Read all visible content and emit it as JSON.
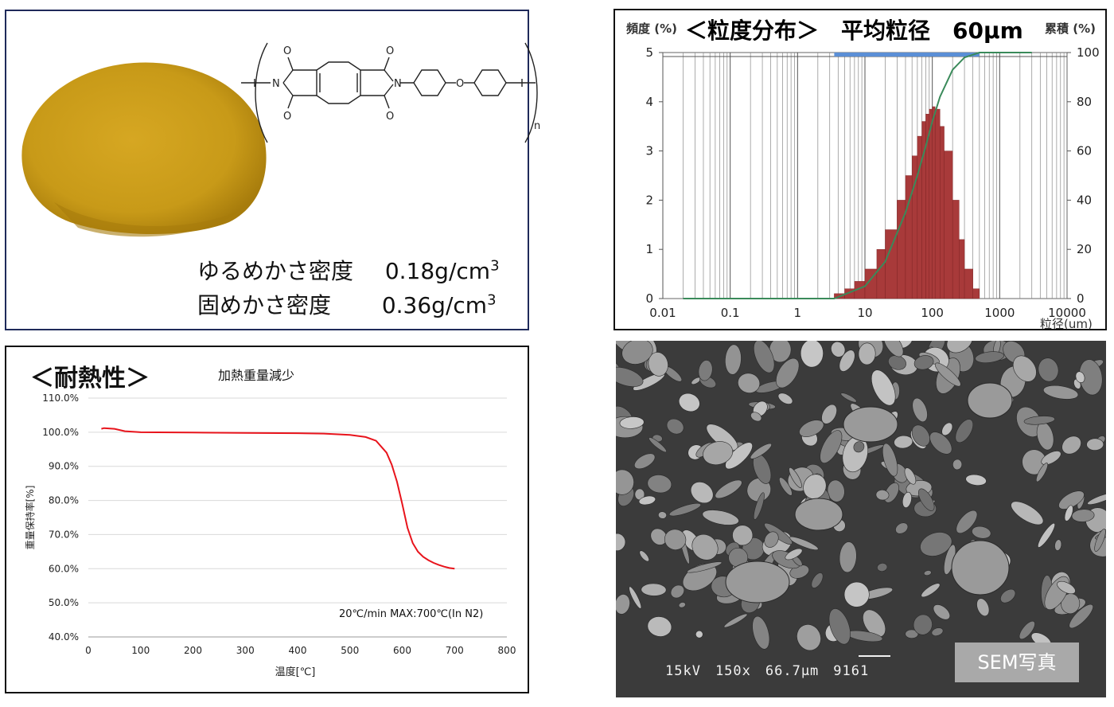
{
  "powder_panel": {
    "density_loose_label": "ゆるめかさ密度",
    "density_loose_value": "0.18g/cm",
    "density_tapped_label": "固めかさ密度",
    "density_tapped_value": "0.36g/cm",
    "density_unit_exponent": "3",
    "structure": {
      "atom_o_top_left": "O",
      "atom_o_top_right": "O",
      "atom_o_bottom_left": "O",
      "atom_o_bottom_right": "O",
      "atom_o_ether": "O",
      "atom_n_left": "N",
      "atom_n_right": "N",
      "repeat_subscript": "n"
    },
    "colors": {
      "powder": "#c89a18",
      "powder_shadow": "#a77c0c"
    }
  },
  "psd_panel": {
    "title": "＜粒度分布＞　平均粒径　60μm",
    "left_axis_label": "頻度 (%)",
    "right_axis_label": "累積 (%)",
    "x_axis_label": "粒径(um)"
  },
  "tga_panel": {
    "title": "＜耐熱性＞",
    "subtitle": "加熱重量減少",
    "annotation": "20℃/min MAX:700℃(In N2)"
  },
  "sem_panel": {
    "caption": "15kV　150x　66.7μm　9161",
    "label": "SEM写真",
    "colors": {
      "background": "#3b3b3b",
      "particle": "#8a8a8a"
    }
  },
  "chart_data": [
    {
      "type": "bar",
      "title": "＜粒度分布＞　平均粒径　60μm",
      "xlabel": "粒径(um)",
      "ylabel": "頻度 (%)",
      "y2label": "累積 (%)",
      "xscale": "log",
      "xlim": [
        0.01,
        10000
      ],
      "ylim": [
        0,
        5
      ],
      "y2lim": [
        0,
        100
      ],
      "xticks": [
        "0.01",
        "0.1",
        "1",
        "10",
        "100",
        "1000",
        "10000"
      ],
      "yticks": [
        "0",
        "1",
        "2",
        "3",
        "4",
        "5"
      ],
      "y2ticks": [
        "0",
        "20",
        "40",
        "60",
        "80",
        "100"
      ],
      "grid": true,
      "range_bar": {
        "from": 3.5,
        "to": 500,
        "color": "#5b8fd6"
      },
      "series": [
        {
          "kind": "bar",
          "color": "#a83a3a",
          "x": [
            3.5,
            5,
            7,
            10,
            15,
            20,
            30,
            40,
            50,
            60,
            70,
            80,
            90,
            100,
            110,
            130,
            150,
            200,
            250,
            300,
            400,
            500
          ],
          "values": [
            0.1,
            0.2,
            0.35,
            0.6,
            1.0,
            1.4,
            2.0,
            2.5,
            2.9,
            3.3,
            3.6,
            3.75,
            3.85,
            3.9,
            3.85,
            3.5,
            3.0,
            2.0,
            1.2,
            0.6,
            0.2,
            0.05
          ]
        },
        {
          "kind": "line",
          "axis": "right",
          "color": "#3a8a5a",
          "x": [
            0.02,
            0.1,
            1,
            3.5,
            10,
            20,
            40,
            60,
            80,
            100,
            130,
            200,
            300,
            500,
            1000,
            3000
          ],
          "values": [
            0,
            0,
            0,
            0,
            5,
            15,
            35,
            50,
            62,
            72,
            82,
            93,
            98,
            100,
            100,
            100
          ]
        }
      ]
    },
    {
      "type": "line",
      "title": "加熱重量減少",
      "xlabel": "温度[℃]",
      "ylabel": "重量保持率[%]",
      "xlim": [
        0,
        800
      ],
      "ylim": [
        40,
        110
      ],
      "xticks": [
        "0",
        "100",
        "200",
        "300",
        "400",
        "500",
        "600",
        "700",
        "800"
      ],
      "yticks": [
        "40.0%",
        "50.0%",
        "60.0%",
        "70.0%",
        "80.0%",
        "90.0%",
        "100.0%",
        "110.0%"
      ],
      "grid": true,
      "series": [
        {
          "color": "#e8141c",
          "x": [
            25,
            30,
            50,
            70,
            100,
            200,
            300,
            400,
            450,
            500,
            530,
            550,
            570,
            580,
            590,
            600,
            610,
            620,
            630,
            640,
            650,
            660,
            670,
            680,
            690,
            700
          ],
          "values": [
            101,
            101.2,
            101,
            100.3,
            100,
            99.9,
            99.8,
            99.7,
            99.6,
            99.2,
            98.6,
            97.5,
            94.0,
            90.5,
            85.5,
            79.0,
            72.0,
            67.5,
            65.0,
            63.5,
            62.5,
            61.7,
            61.1,
            60.6,
            60.2,
            60.0
          ]
        }
      ]
    }
  ]
}
